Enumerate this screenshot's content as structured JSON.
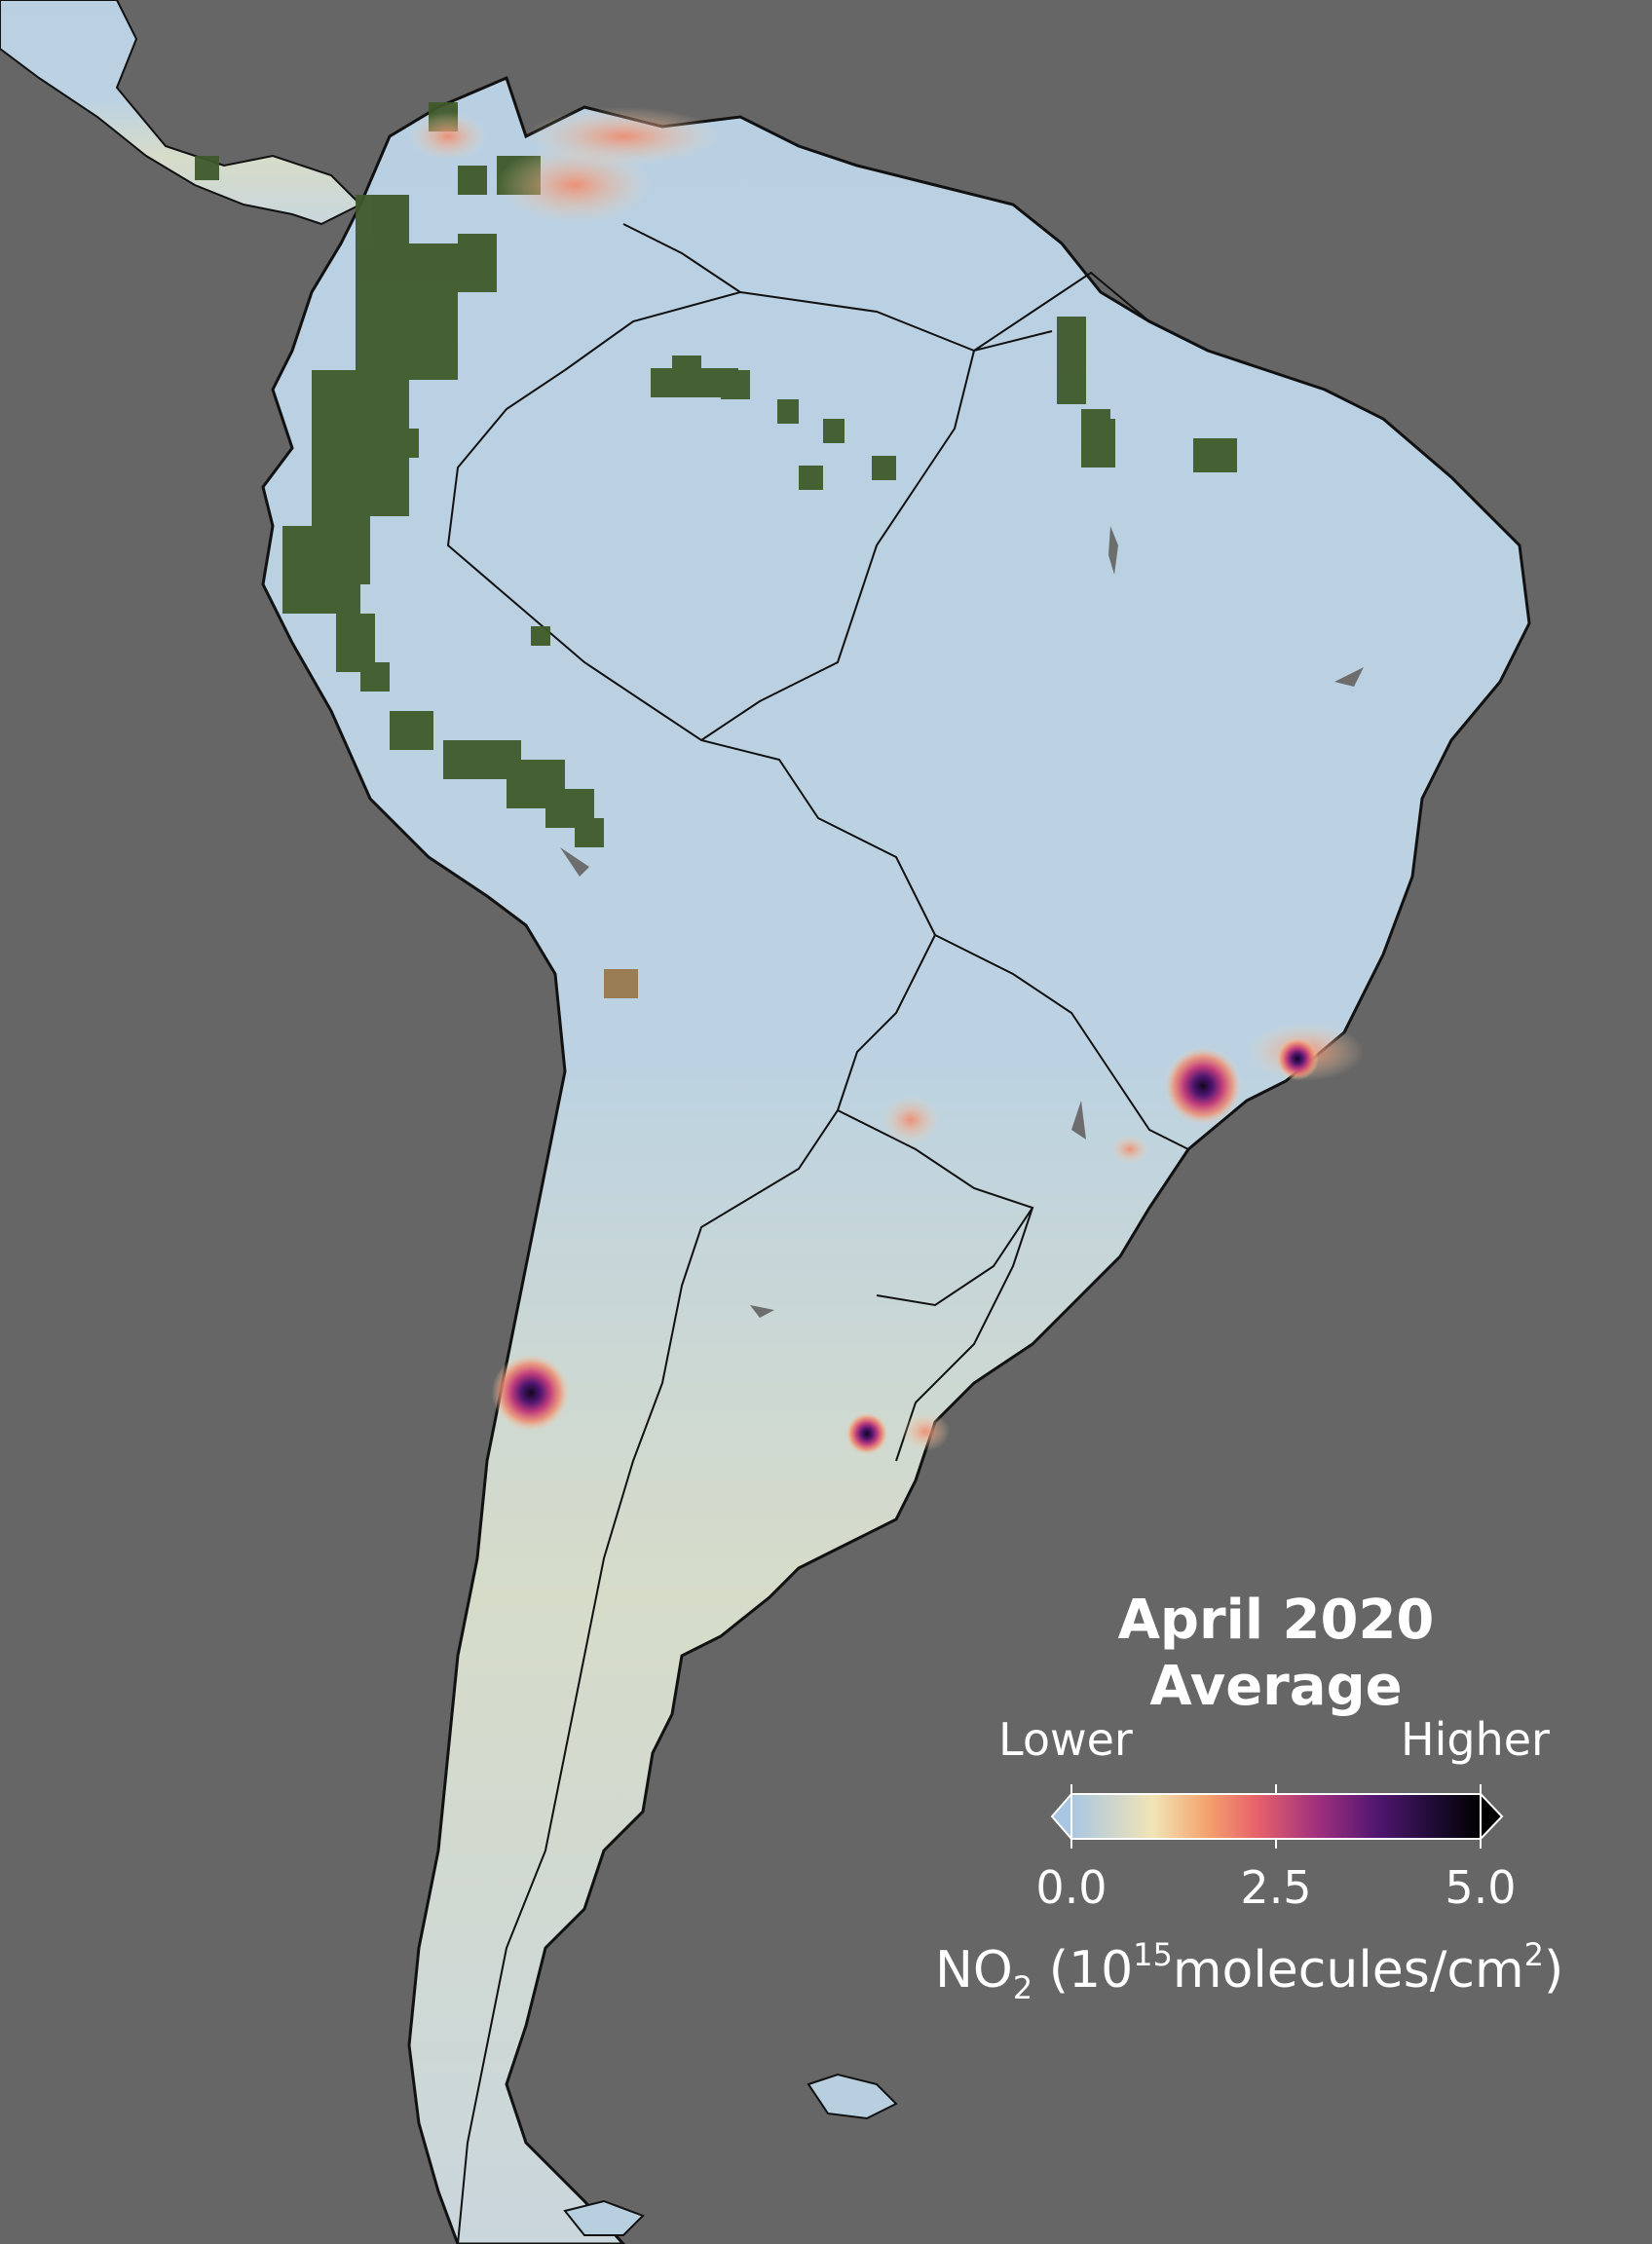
{
  "legend": {
    "title_line1": "April 2020",
    "title_line2": "Average",
    "low_label": "Lower",
    "high_label": "Higher",
    "ticks": [
      "0.0",
      "2.5",
      "5.0"
    ],
    "unit_prefix": "NO",
    "unit_sub": "2",
    "unit_mid": " (10",
    "unit_exp": "15",
    "unit_text": "molecules/cm",
    "unit_exp2": "2",
    "unit_close": ")",
    "colormap": [
      "#a9c7e3",
      "#f2e4b5",
      "#f4a36f",
      "#e8636b",
      "#a1307e",
      "#4f1670",
      "#1a0a2e",
      "#000000"
    ]
  },
  "colors": {
    "ocean": "#666666",
    "land_low": "#b8cfe0",
    "land_mid": "#efe1b8",
    "no_data": "#3f5a2a",
    "hotspot": "#e8636b",
    "hotspot_core": "#3a0f4f",
    "border": "#111111"
  },
  "icons": {
    "colorbar": "colorbar-gradient"
  }
}
